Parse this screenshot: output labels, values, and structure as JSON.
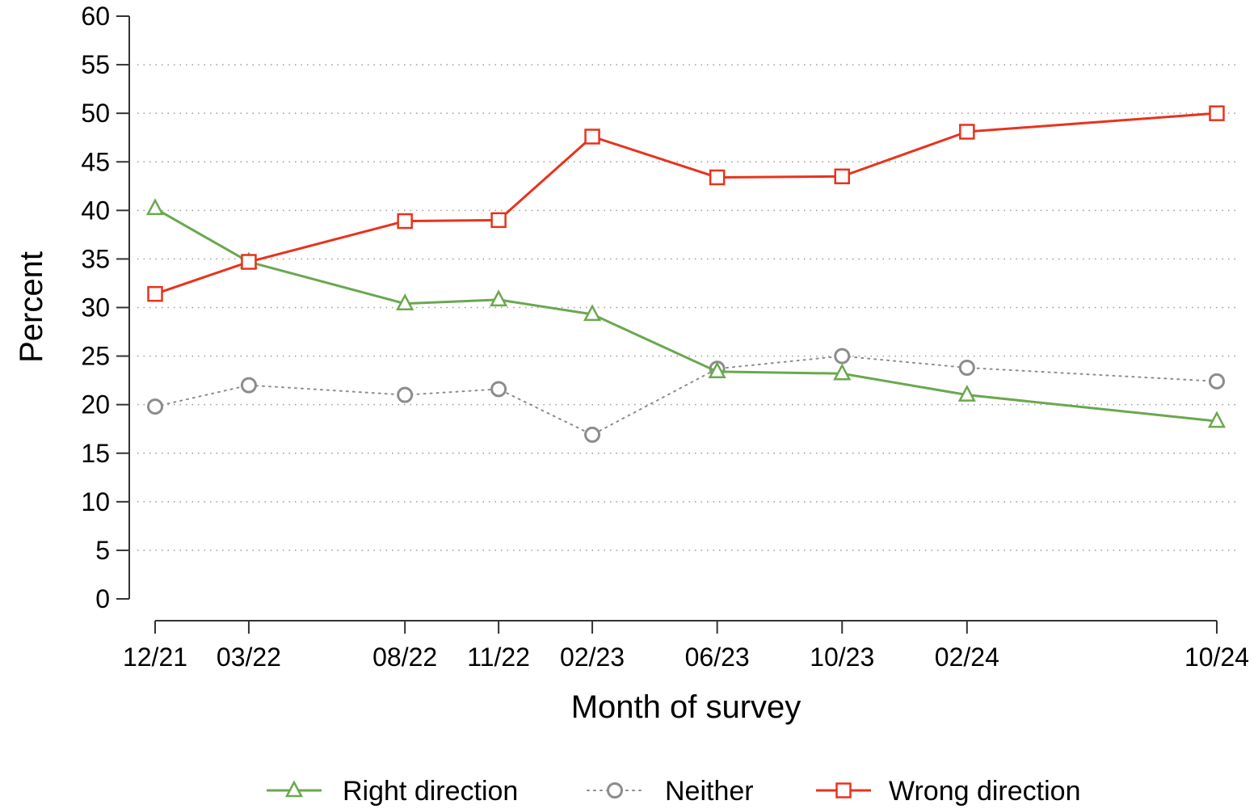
{
  "chart_data": {
    "type": "line",
    "xlabel": "Month of survey",
    "ylabel": "Percent",
    "ylim": [
      0,
      60
    ],
    "yticks": [
      0,
      5,
      10,
      15,
      20,
      25,
      30,
      35,
      40,
      45,
      50,
      55,
      60
    ],
    "x": [
      "2021-12",
      "2022-03",
      "2022-08",
      "2022-11",
      "2023-02",
      "2023-06",
      "2023-10",
      "2024-02",
      "2024-10"
    ],
    "xtick_labels": [
      "12/21",
      "03/22",
      "08/22",
      "11/22",
      "02/23",
      "06/23",
      "10/23",
      "02/24",
      "10/24"
    ],
    "grid": "horizontal dotted",
    "legend_position": "bottom",
    "series": [
      {
        "name": "Right direction",
        "values": [
          40.2,
          34.7,
          30.4,
          30.8,
          29.3,
          23.4,
          23.2,
          21.0,
          18.3
        ],
        "color": "#6aa84f",
        "marker": "triangle",
        "line": "solid"
      },
      {
        "name": "Neither",
        "values": [
          19.8,
          22.0,
          21.0,
          21.6,
          16.9,
          23.7,
          25.0,
          23.8,
          22.4
        ],
        "color": "#8c8c8c",
        "marker": "circle",
        "line": "dotted"
      },
      {
        "name": "Wrong direction",
        "values": [
          31.4,
          34.7,
          38.9,
          39.0,
          47.6,
          43.4,
          43.5,
          48.1,
          50.0
        ],
        "color": "#e8331c",
        "marker": "square",
        "line": "solid"
      }
    ]
  }
}
